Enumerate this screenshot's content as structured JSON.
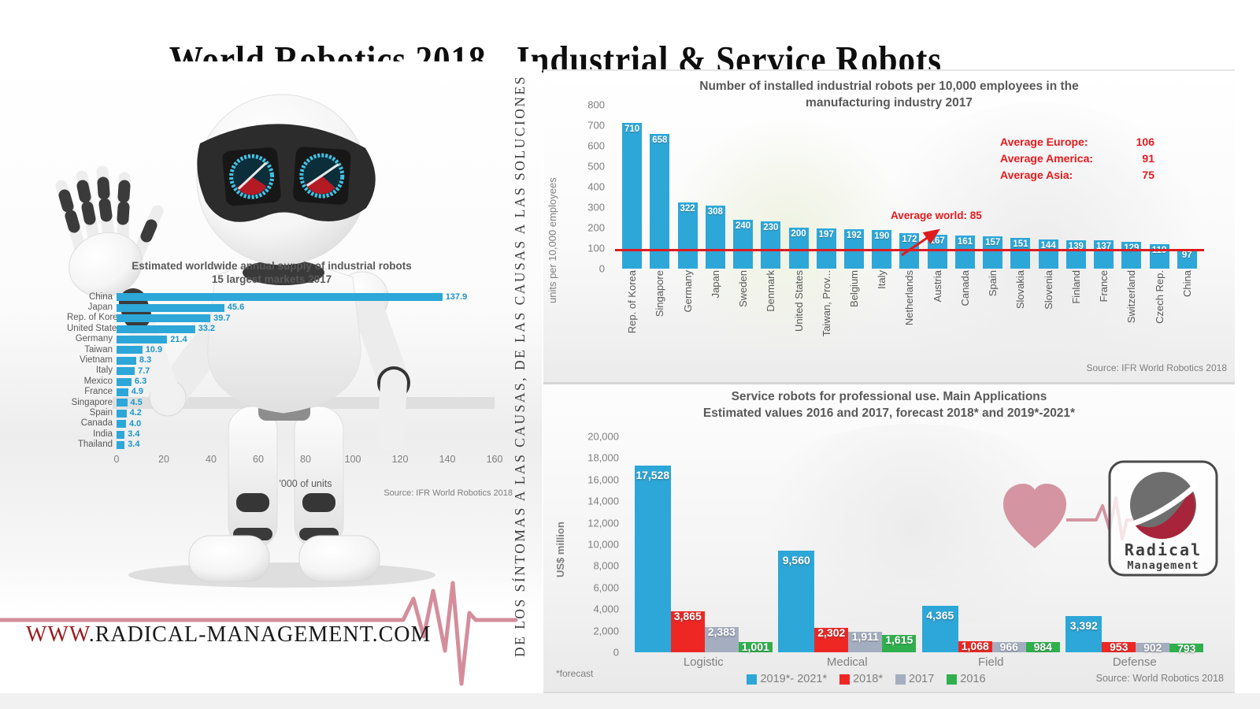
{
  "page": {
    "title": "World Robotics 2018 - Industrial & Service Robots",
    "website": {
      "prefix": "WWW",
      "rest": ".RADICAL-MANAGEMENT.COM"
    },
    "vertical_tagline": "DE LOS SÍNTOMAS A LAS CAUSAS, DE LAS CAUSAS A LAS SOLUCIONES",
    "logo": {
      "line1": "Radical",
      "line2": "Management"
    }
  },
  "chart_data": [
    {
      "id": "supply",
      "type": "bar",
      "orientation": "horizontal",
      "title_line1": "Estimated worldwide annual supply of industrial robots",
      "title_line2": "15 largest markets 2017",
      "categories": [
        "China",
        "Japan",
        "Rep. of Korea",
        "United States",
        "Germany",
        "Taiwan",
        "Vietnam",
        "Italy",
        "Mexico",
        "France",
        "Singapore",
        "Spain",
        "Canada",
        "India",
        "Thailand"
      ],
      "values": [
        137.9,
        45.6,
        39.7,
        33.2,
        21.4,
        10.9,
        8.3,
        7.7,
        6.3,
        4.9,
        4.5,
        4.2,
        4.0,
        3.4,
        3.4
      ],
      "value_labels": [
        "137.9",
        "45.6",
        "39.7",
        "33.2",
        "21.4",
        "10.9",
        "8.3",
        "7.7",
        "6.3",
        "4.9",
        "4.5",
        "4.2",
        "4.0",
        "3.4",
        "3.4"
      ],
      "xlabel": "'000 of units",
      "x_ticks": [
        0,
        20,
        40,
        60,
        80,
        100,
        120,
        140,
        160
      ],
      "xlim": [
        0,
        160
      ],
      "bar_color": "#2da7d8",
      "source": "Source: IFR World Robotics 2018"
    },
    {
      "id": "density",
      "type": "bar",
      "title_line1": "Number of installed industrial robots per 10,000 employees in the",
      "title_line2": "manufacturing industry 2017",
      "ylabel": "units per 10,000 employees",
      "y_ticks": [
        800,
        700,
        600,
        500,
        400,
        300,
        200,
        100,
        0
      ],
      "ylim": [
        0,
        800
      ],
      "categories": [
        "Rep. of Korea",
        "Singapore",
        "Germany",
        "Japan",
        "Sweden",
        "Denmark",
        "United States",
        "Taiwan, Prov...",
        "Belgium",
        "Italy",
        "Netherlands",
        "Austria",
        "Canada",
        "Spain",
        "Slovakia",
        "Slovenia",
        "Finland",
        "France",
        "Switzerland",
        "Czech Rep.",
        "China"
      ],
      "values": [
        710,
        658,
        322,
        308,
        240,
        230,
        200,
        197,
        192,
        190,
        172,
        167,
        161,
        157,
        151,
        144,
        139,
        137,
        129,
        119,
        97
      ],
      "value_labels": [
        "710",
        "658",
        "322",
        "308",
        "240",
        "230",
        "200",
        "197",
        "192",
        "190",
        "172",
        "167",
        "161",
        "157",
        "151",
        "144",
        "139",
        "137",
        "129",
        "119",
        "97"
      ],
      "average_world": {
        "label": "Average world: 85",
        "value": 85
      },
      "averages": [
        {
          "label": "Average Europe:",
          "value": "106"
        },
        {
          "label": "Average America:",
          "value": "91"
        },
        {
          "label": "Average Asia:",
          "value": "75"
        }
      ],
      "bar_color": "#2da7d8",
      "line_color": "#e01b1e",
      "source": "Source: IFR World Robotics 2018"
    },
    {
      "id": "service",
      "type": "grouped-bar",
      "title_line1": "Service robots for professional use. Main Applications",
      "title_line2": "Estimated values 2016 and 2017, forecast 2018* and 2019*-2021*",
      "ylabel": "US$ million",
      "y_ticks": [
        "20,000",
        "18,000",
        "16,000",
        "14,000",
        "12,000",
        "10,000",
        "8,000",
        "6,000",
        "4,000",
        "2,000",
        "0"
      ],
      "ylim": [
        0,
        20000
      ],
      "categories": [
        "Logistic",
        "Medical",
        "Field",
        "Defense"
      ],
      "series": [
        {
          "name": "2019*- 2021*",
          "color": "#2da7d8",
          "values": [
            17528,
            9560,
            4365,
            3392
          ],
          "labels": [
            "17,528",
            "9,560",
            "4,365",
            "3,392"
          ]
        },
        {
          "name": "2018*",
          "color": "#ee2724",
          "values": [
            3865,
            2302,
            1068,
            953
          ],
          "labels": [
            "3,865",
            "2,302",
            "1,068",
            "953"
          ]
        },
        {
          "name": "2017",
          "color": "#a5aec0",
          "values": [
            2383,
            1911,
            966,
            902
          ],
          "labels": [
            "2,383",
            "1,911",
            "966",
            "902"
          ]
        },
        {
          "name": "2016",
          "color": "#2fb04d",
          "values": [
            1001,
            1615,
            984,
            793
          ],
          "labels": [
            "1,001",
            "1,615",
            "984",
            "793"
          ]
        }
      ],
      "footnote": "*forecast",
      "legend_position": "bottom",
      "source": "Source: World Robotics 2018"
    }
  ]
}
